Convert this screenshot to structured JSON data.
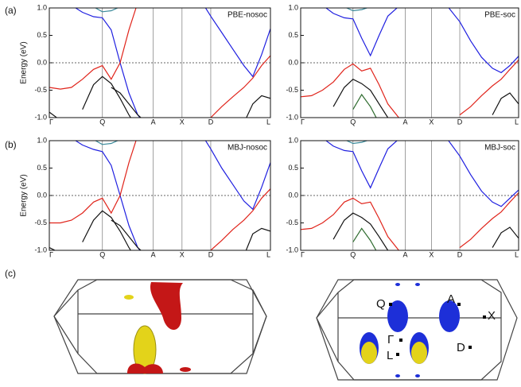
{
  "panel_labels": [
    "(a)",
    "(b)",
    "(c)"
  ],
  "chart_data": [
    {
      "type": "line",
      "ylabel": "Energy (eV)",
      "annotation": "PBE-nosoc",
      "x": [
        0,
        0.05,
        0.1,
        0.15,
        0.2,
        0.24,
        0.28,
        0.32,
        0.36,
        0.4,
        0.47,
        0.53,
        0.6,
        0.66,
        0.73,
        0.78,
        0.83,
        0.88,
        0.92,
        0.96,
        1
      ],
      "xlim": [
        0,
        1
      ],
      "xticks": [
        {
          "value": 0,
          "label": "Γ"
        },
        {
          "value": 0.24,
          "label": "Q"
        },
        {
          "value": 0.47,
          "label": "A"
        },
        {
          "value": 0.6,
          "label": "X"
        },
        {
          "value": 0.73,
          "label": "D"
        },
        {
          "value": 1,
          "label": "L"
        }
      ],
      "ylim": [
        -1,
        1
      ],
      "yticks": [
        {
          "value": -1,
          "label": "-1.0"
        },
        -0.5,
        {
          "value": 0,
          "label": "0.0"
        },
        0.5,
        {
          "value": 1,
          "label": "1.0"
        }
      ],
      "hline": 0,
      "series": [
        {
          "color": "#1f1fe0",
          "values": [
            null,
            null,
            1.05,
            0.92,
            0.84,
            0.82,
            0.6,
            0.0,
            -0.55,
            -0.95,
            -1.3,
            null,
            null,
            1.3,
            0.85,
            0.55,
            0.25,
            -0.05,
            -0.25,
            0.15,
            0.62
          ]
        },
        {
          "color": "#e0241b",
          "values": [
            -0.45,
            -0.48,
            -0.45,
            -0.3,
            -0.12,
            -0.05,
            -0.3,
            0.0,
            0.6,
            1.1,
            null,
            null,
            null,
            null,
            -1.0,
            -0.8,
            -0.62,
            -0.45,
            -0.28,
            -0.05,
            0.13
          ]
        },
        {
          "color": "#111111",
          "values": [
            -0.9,
            -1.05,
            null,
            -0.85,
            -0.4,
            -0.25,
            -0.38,
            -0.65,
            -0.95,
            -1.2,
            null,
            null,
            null,
            null,
            null,
            null,
            null,
            -1.1,
            -0.75,
            -0.6,
            -0.65
          ]
        },
        {
          "color": "#111111",
          "values": [
            null,
            null,
            null,
            null,
            null,
            null,
            -0.45,
            -0.55,
            -0.75,
            -0.95,
            -1.2,
            null,
            null,
            null,
            null,
            null,
            null,
            null,
            null,
            null,
            null
          ]
        },
        {
          "color": "#3a8a9a",
          "values": [
            null,
            null,
            null,
            null,
            1.02,
            0.93,
            0.95,
            1.02,
            null,
            null,
            null,
            null,
            null,
            null,
            null,
            null,
            null,
            null,
            null,
            null,
            null
          ]
        }
      ]
    },
    {
      "type": "line",
      "annotation": "PBE-soc",
      "x": [
        0,
        0.05,
        0.1,
        0.15,
        0.2,
        0.24,
        0.28,
        0.32,
        0.36,
        0.4,
        0.47,
        0.53,
        0.6,
        0.66,
        0.73,
        0.78,
        0.83,
        0.88,
        0.92,
        0.96,
        1
      ],
      "xlim": [
        0,
        1
      ],
      "xticks": [
        {
          "value": 0,
          "label": "Γ"
        },
        {
          "value": 0.24,
          "label": "Q"
        },
        {
          "value": 0.48,
          "label": "A"
        },
        {
          "value": 0.6,
          "label": "X"
        },
        {
          "value": 0.73,
          "label": "D"
        },
        {
          "value": 1,
          "label": "L"
        }
      ],
      "ylim": [
        -1,
        1
      ],
      "yticks": [
        {
          "value": -1,
          "label": "-1.0"
        },
        -0.5,
        {
          "value": 0,
          "label": "0.0"
        },
        0.5,
        {
          "value": 1,
          "label": "1.0"
        }
      ],
      "hline": 0,
      "series": [
        {
          "color": "#1f1fe0",
          "values": [
            null,
            null,
            1.05,
            0.9,
            0.82,
            0.8,
            0.45,
            0.13,
            0.5,
            0.85,
            1.1,
            null,
            null,
            1.1,
            0.75,
            0.4,
            0.1,
            -0.1,
            -0.18,
            -0.05,
            0.12
          ]
        },
        {
          "color": "#e0241b",
          "values": [
            -0.62,
            -0.6,
            -0.5,
            -0.35,
            -0.12,
            -0.02,
            -0.15,
            -0.1,
            -0.4,
            -0.75,
            -1.1,
            null,
            null,
            null,
            -0.95,
            -0.8,
            -0.6,
            -0.42,
            -0.3,
            -0.12,
            0.05
          ]
        },
        {
          "color": "#111111",
          "values": [
            -1.0,
            -1.1,
            null,
            -0.8,
            -0.45,
            -0.3,
            -0.38,
            -0.5,
            -0.75,
            -1.0,
            -1.2,
            null,
            null,
            null,
            null,
            null,
            null,
            -0.95,
            -0.65,
            -0.55,
            -0.75
          ]
        },
        {
          "color": "#2e6b2e",
          "values": [
            null,
            null,
            null,
            null,
            null,
            -0.85,
            -0.58,
            -0.8,
            -1.1,
            null,
            null,
            null,
            null,
            null,
            null,
            null,
            null,
            null,
            null,
            null,
            null
          ]
        },
        {
          "color": "#3a8a9a",
          "values": [
            null,
            null,
            null,
            null,
            1.02,
            0.95,
            0.97,
            1.02,
            null,
            null,
            null,
            null,
            null,
            null,
            null,
            null,
            null,
            null,
            null,
            null,
            null
          ]
        }
      ]
    },
    {
      "type": "line",
      "ylabel": "Energy (eV)",
      "annotation": "MBJ-nosoc",
      "x": [
        0,
        0.05,
        0.1,
        0.15,
        0.2,
        0.24,
        0.28,
        0.32,
        0.36,
        0.4,
        0.47,
        0.53,
        0.6,
        0.66,
        0.73,
        0.78,
        0.83,
        0.88,
        0.92,
        0.96,
        1
      ],
      "xlim": [
        0,
        1
      ],
      "xticks": [
        {
          "value": 0,
          "label": "Γ"
        },
        {
          "value": 0.24,
          "label": "Q"
        },
        {
          "value": 0.47,
          "label": "A"
        },
        {
          "value": 0.6,
          "label": "X"
        },
        {
          "value": 0.73,
          "label": "D"
        },
        {
          "value": 1,
          "label": "L"
        }
      ],
      "ylim": [
        -1,
        1
      ],
      "yticks": [
        {
          "value": -1,
          "label": "-1.0"
        },
        -0.5,
        {
          "value": 0,
          "label": "0.0"
        },
        0.5,
        {
          "value": 1,
          "label": "1.0"
        }
      ],
      "hline": 0,
      "series": [
        {
          "color": "#1f1fe0",
          "values": [
            null,
            null,
            1.05,
            0.92,
            0.84,
            0.8,
            0.55,
            0.0,
            -0.55,
            -0.95,
            -1.3,
            null,
            null,
            1.3,
            0.85,
            0.5,
            0.2,
            -0.1,
            -0.25,
            0.15,
            0.6
          ]
        },
        {
          "color": "#e0241b",
          "values": [
            -0.5,
            -0.5,
            -0.45,
            -0.32,
            -0.12,
            -0.05,
            -0.32,
            0.0,
            0.6,
            1.1,
            null,
            null,
            null,
            null,
            -1.0,
            -0.82,
            -0.62,
            -0.45,
            -0.28,
            -0.05,
            0.12
          ]
        },
        {
          "color": "#111111",
          "values": [
            -0.95,
            -1.05,
            null,
            -0.85,
            -0.45,
            -0.28,
            -0.4,
            -0.65,
            -0.95,
            -1.2,
            null,
            null,
            null,
            null,
            null,
            null,
            null,
            -1.1,
            -0.7,
            -0.6,
            -0.65
          ]
        },
        {
          "color": "#111111",
          "values": [
            null,
            null,
            null,
            null,
            null,
            null,
            -0.45,
            -0.55,
            -0.75,
            -0.95,
            -1.2,
            null,
            null,
            null,
            null,
            null,
            null,
            null,
            null,
            null,
            null
          ]
        },
        {
          "color": "#3a8a9a",
          "values": [
            null,
            null,
            null,
            null,
            1.02,
            0.93,
            0.95,
            1.02,
            null,
            null,
            null,
            null,
            null,
            null,
            null,
            null,
            null,
            null,
            null,
            null,
            null
          ]
        }
      ]
    },
    {
      "type": "line",
      "annotation": "MBJ-soc",
      "x": [
        0,
        0.05,
        0.1,
        0.15,
        0.2,
        0.24,
        0.28,
        0.32,
        0.36,
        0.4,
        0.47,
        0.53,
        0.6,
        0.66,
        0.73,
        0.78,
        0.83,
        0.88,
        0.92,
        0.96,
        1
      ],
      "xlim": [
        0,
        1
      ],
      "xticks": [
        {
          "value": 0,
          "label": "Γ"
        },
        {
          "value": 0.24,
          "label": "Q"
        },
        {
          "value": 0.48,
          "label": "A"
        },
        {
          "value": 0.6,
          "label": "X"
        },
        {
          "value": 0.73,
          "label": "D"
        },
        {
          "value": 1,
          "label": "L"
        }
      ],
      "ylim": [
        -1,
        1
      ],
      "yticks": [
        {
          "value": -1,
          "label": "-1.0"
        },
        -0.5,
        {
          "value": 0,
          "label": "0.0"
        },
        0.5,
        {
          "value": 1,
          "label": "1.0"
        }
      ],
      "hline": 0,
      "series": [
        {
          "color": "#1f1fe0",
          "values": [
            null,
            null,
            1.05,
            0.9,
            0.82,
            0.8,
            0.45,
            0.14,
            0.5,
            0.85,
            1.1,
            null,
            null,
            1.1,
            0.72,
            0.38,
            0.08,
            -0.12,
            -0.2,
            -0.05,
            0.1
          ]
        },
        {
          "color": "#e0241b",
          "values": [
            -0.62,
            -0.6,
            -0.5,
            -0.35,
            -0.12,
            -0.05,
            -0.15,
            -0.12,
            -0.42,
            -0.75,
            -1.1,
            null,
            null,
            null,
            -0.95,
            -0.8,
            -0.6,
            -0.42,
            -0.3,
            -0.12,
            0.05
          ]
        },
        {
          "color": "#111111",
          "values": [
            -1.0,
            -1.1,
            null,
            -0.8,
            -0.45,
            -0.32,
            -0.4,
            -0.52,
            -0.75,
            -1.0,
            -1.2,
            null,
            null,
            null,
            null,
            null,
            null,
            -0.95,
            -0.68,
            -0.58,
            -0.78
          ]
        },
        {
          "color": "#2e6b2e",
          "values": [
            null,
            null,
            null,
            null,
            null,
            -0.85,
            -0.6,
            -0.82,
            -1.1,
            null,
            null,
            null,
            null,
            null,
            null,
            null,
            null,
            null,
            null,
            null,
            null
          ]
        },
        {
          "color": "#3a8a9a",
          "values": [
            null,
            null,
            null,
            null,
            1.02,
            0.95,
            0.97,
            1.02,
            null,
            null,
            null,
            null,
            null,
            null,
            null,
            null,
            null,
            null,
            null,
            null,
            null
          ]
        }
      ]
    }
  ],
  "fermi_surface": {
    "labels": [
      "Q",
      "A",
      "X",
      "Γ",
      "L",
      "D"
    ]
  }
}
